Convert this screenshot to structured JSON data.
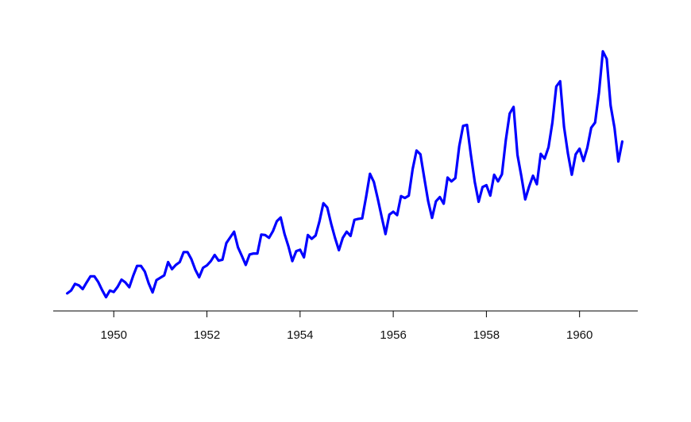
{
  "chart_data": {
    "type": "line",
    "title": "",
    "xlabel": "",
    "ylabel": "",
    "xlim": [
      1948.7,
      1961.25
    ],
    "ylim": [
      75,
      650
    ],
    "x_ticks": [
      1950,
      1952,
      1954,
      1956,
      1958,
      1960
    ],
    "x_tick_labels": [
      "1950",
      "1952",
      "1954",
      "1956",
      "1958",
      "1960"
    ],
    "y_axis_shown": false,
    "grid": false,
    "legend": "none",
    "x_start": 1949.0,
    "x_step": 0.0833333,
    "series": [
      {
        "color": "#0000ff",
        "values": [
          112,
          118,
          132,
          129,
          121,
          135,
          148,
          148,
          136,
          119,
          104,
          118,
          115,
          126,
          141,
          135,
          125,
          149,
          170,
          170,
          158,
          133,
          114,
          140,
          145,
          150,
          178,
          163,
          172,
          178,
          199,
          199,
          184,
          162,
          146,
          166,
          171,
          180,
          193,
          181,
          183,
          218,
          230,
          242,
          209,
          191,
          172,
          194,
          196,
          196,
          236,
          235,
          229,
          243,
          264,
          272,
          237,
          211,
          180,
          201,
          204,
          188,
          235,
          227,
          234,
          264,
          302,
          293,
          259,
          229,
          203,
          229,
          242,
          233,
          267,
          269,
          270,
          315,
          364,
          347,
          312,
          274,
          237,
          278,
          284,
          277,
          317,
          313,
          318,
          374,
          413,
          405,
          355,
          306,
          271,
          306,
          315,
          301,
          356,
          348,
          355,
          422,
          465,
          467,
          404,
          347,
          305,
          336,
          340,
          318,
          362,
          348,
          363,
          435,
          491,
          505,
          404,
          359,
          310,
          337,
          360,
          342,
          406,
          396,
          420,
          472,
          548,
          559,
          463,
          407,
          362,
          405,
          417,
          391,
          419,
          461,
          472,
          535,
          622,
          606,
          508,
          461,
          390,
          432
        ]
      }
    ]
  }
}
